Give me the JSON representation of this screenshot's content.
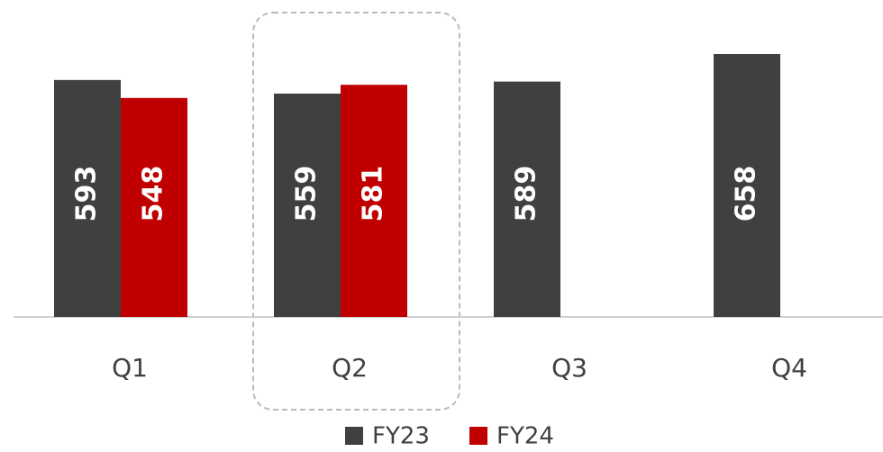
{
  "chart_data": {
    "type": "bar",
    "categories": [
      "Q1",
      "Q2",
      "Q3",
      "Q4"
    ],
    "series": [
      {
        "name": "FY23",
        "color": "#404040",
        "values": [
          593,
          559,
          589,
          658
        ]
      },
      {
        "name": "FY24",
        "color": "#c00000",
        "values": [
          548,
          581,
          null,
          null
        ]
      }
    ]
  }
}
